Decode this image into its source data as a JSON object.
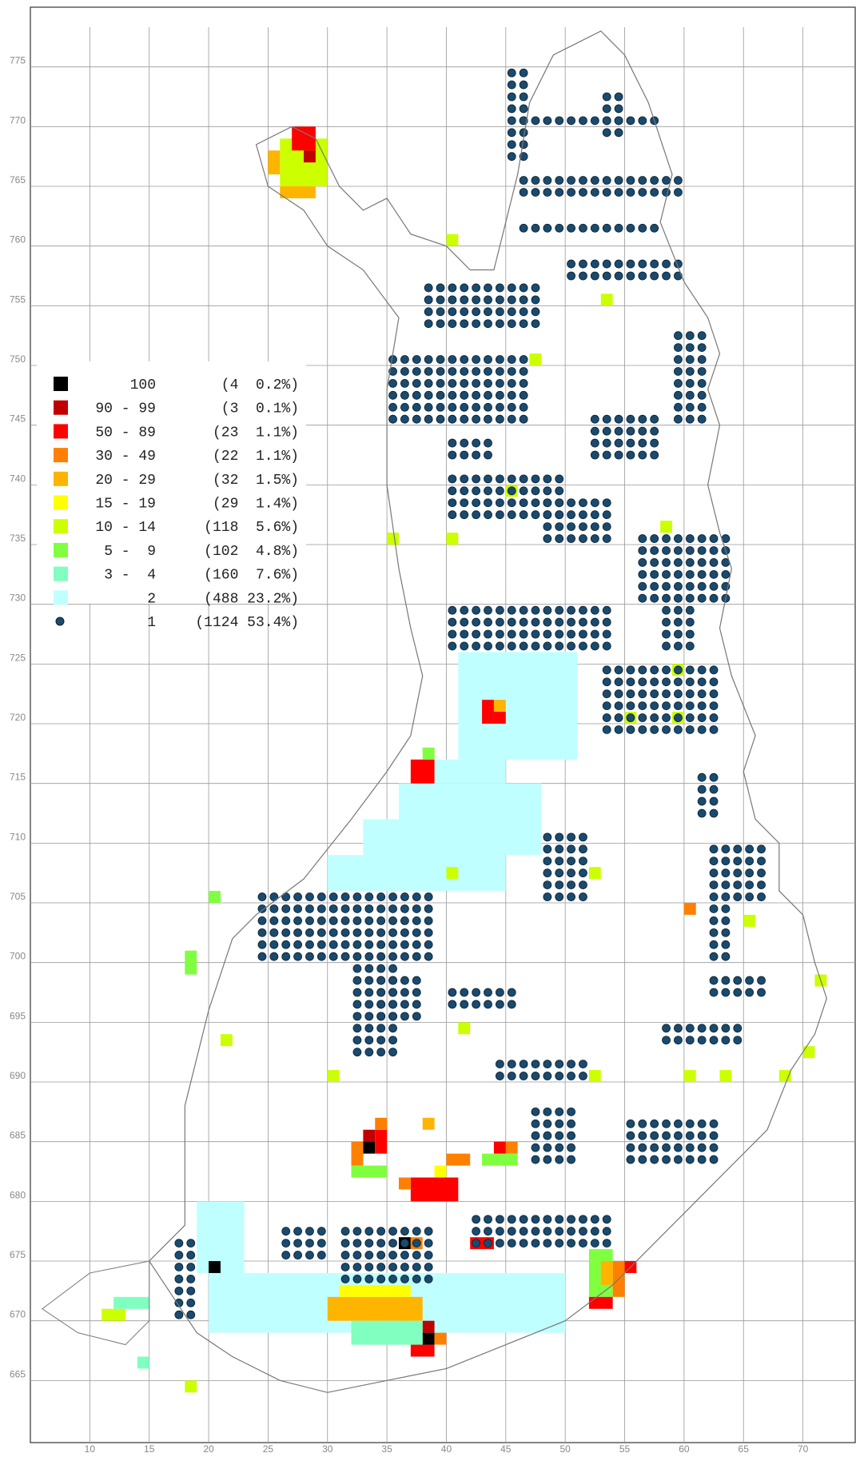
{
  "map": {
    "xlim": [
      5,
      74.4
    ],
    "ylim": [
      659.8,
      780
    ],
    "xticks": [
      10,
      15,
      20,
      25,
      30,
      35,
      40,
      45,
      50,
      55,
      60,
      65,
      70
    ],
    "yticks": [
      665,
      670,
      675,
      680,
      685,
      690,
      695,
      700,
      705,
      710,
      715,
      720,
      725,
      730,
      735,
      740,
      745,
      750,
      755,
      760,
      765,
      770,
      775
    ],
    "legend": [
      {
        "range": "100",
        "info": "(4  0.2%)",
        "color": "#000000"
      },
      {
        "range": "90 - 99",
        "info": "(3  0.1%)",
        "color": "#c00000"
      },
      {
        "range": "50 - 89",
        "info": "(23  1.1%)",
        "color": "#ff0000"
      },
      {
        "range": "30 - 49",
        "info": "(22  1.1%)",
        "color": "#ff8000"
      },
      {
        "range": "20 - 29",
        "info": "(32  1.5%)",
        "color": "#ffb400"
      },
      {
        "range": "15 - 19",
        "info": "(29  1.4%)",
        "color": "#ffff00"
      },
      {
        "range": "10 - 14",
        "info": "(118  5.6%)",
        "color": "#ccff00"
      },
      {
        "range": "5 -  9",
        "info": "(102  4.8%)",
        "color": "#80ff40"
      },
      {
        "range": "3 -  4",
        "info": "(160  7.6%)",
        "color": "#80ffc0"
      },
      {
        "range": "2",
        "info": "(488 23.2%)",
        "color": "#c0ffff"
      },
      {
        "range": "1",
        "info": "(1124 53.4%)",
        "color": "#1a4a6e"
      }
    ],
    "cells": [
      [
        30,
        706,
        15,
        3,
        9
      ],
      [
        33,
        709,
        15,
        3,
        9
      ],
      [
        36,
        712,
        12,
        3,
        9
      ],
      [
        39,
        715,
        6,
        2,
        9
      ],
      [
        41,
        717,
        10,
        9,
        9
      ],
      [
        20,
        669,
        30,
        5,
        9
      ],
      [
        19,
        674,
        4,
        6,
        9
      ],
      [
        43,
        722,
        5,
        3,
        9
      ],
      [
        26,
        765,
        4,
        4,
        6
      ],
      [
        27,
        768,
        2,
        2,
        2
      ],
      [
        28,
        767,
        1,
        1,
        1
      ],
      [
        26,
        764,
        3,
        1,
        4
      ],
      [
        25,
        766,
        1,
        2,
        4
      ],
      [
        37,
        715,
        2,
        2,
        2
      ],
      [
        38,
        717,
        1,
        1,
        7
      ],
      [
        43,
        720,
        1,
        2,
        2
      ],
      [
        44,
        721,
        1,
        1,
        4
      ],
      [
        44,
        720,
        1,
        1,
        2
      ],
      [
        32,
        682,
        3,
        1,
        7
      ],
      [
        37,
        680,
        4,
        2,
        2
      ],
      [
        36,
        681,
        1,
        1,
        3
      ],
      [
        33,
        684,
        1,
        1,
        0
      ],
      [
        33,
        685,
        1,
        1,
        1
      ],
      [
        34,
        684,
        1,
        2,
        2
      ],
      [
        34,
        686,
        1,
        1,
        3
      ],
      [
        32,
        683,
        1,
        2,
        3
      ],
      [
        36,
        676,
        1,
        1,
        0
      ],
      [
        37,
        676,
        1,
        1,
        3
      ],
      [
        36,
        668,
        1,
        2,
        3
      ],
      [
        37,
        667,
        2,
        1,
        2
      ],
      [
        38,
        668,
        1,
        1,
        0
      ],
      [
        38,
        669,
        1,
        1,
        1
      ],
      [
        39,
        668,
        1,
        1,
        3
      ],
      [
        20,
        674,
        1,
        1,
        0
      ],
      [
        42,
        676,
        2,
        1,
        2
      ],
      [
        52,
        672,
        2,
        4,
        7
      ],
      [
        52,
        671,
        2,
        1,
        2
      ],
      [
        54,
        672,
        1,
        3,
        3
      ],
      [
        55,
        674,
        1,
        1,
        2
      ],
      [
        53,
        673,
        1,
        2,
        4
      ],
      [
        43,
        683,
        3,
        1,
        7
      ],
      [
        44,
        684,
        1,
        1,
        2
      ],
      [
        45,
        684,
        1,
        1,
        3
      ],
      [
        30,
        670,
        8,
        2,
        4
      ],
      [
        31,
        672,
        6,
        1,
        5
      ],
      [
        32,
        668,
        6,
        2,
        8
      ],
      [
        38,
        686,
        1,
        1,
        4
      ],
      [
        39,
        682,
        1,
        1,
        5
      ],
      [
        40,
        683,
        2,
        1,
        3
      ],
      [
        58,
        736,
        1,
        1,
        6
      ],
      [
        59,
        720,
        1,
        1,
        6
      ],
      [
        59,
        724,
        1,
        1,
        6
      ],
      [
        60,
        704,
        1,
        1,
        3
      ],
      [
        71,
        698,
        1,
        1,
        6
      ],
      [
        65,
        703,
        1,
        1,
        6
      ],
      [
        55,
        720,
        1,
        1,
        6
      ],
      [
        45,
        739,
        1,
        1,
        6
      ],
      [
        40,
        735,
        1,
        1,
        6
      ],
      [
        35,
        735,
        1,
        1,
        6
      ],
      [
        40,
        760,
        1,
        1,
        6
      ],
      [
        47,
        750,
        1,
        1,
        6
      ],
      [
        53,
        755,
        1,
        1,
        6
      ],
      [
        52,
        707,
        1,
        1,
        6
      ],
      [
        40,
        707,
        1,
        1,
        6
      ],
      [
        20,
        705,
        1,
        1,
        7
      ],
      [
        18,
        699,
        1,
        2,
        7
      ],
      [
        21,
        693,
        1,
        1,
        6
      ],
      [
        30,
        690,
        1,
        1,
        6
      ],
      [
        41,
        694,
        1,
        1,
        6
      ],
      [
        52,
        690,
        1,
        1,
        6
      ],
      [
        60,
        690,
        1,
        1,
        6
      ],
      [
        63,
        690,
        1,
        1,
        6
      ],
      [
        68,
        690,
        1,
        1,
        6
      ],
      [
        70,
        692,
        1,
        1,
        6
      ],
      [
        18,
        664,
        1,
        1,
        6
      ],
      [
        14,
        666,
        1,
        1,
        8
      ],
      [
        11,
        670,
        2,
        1,
        6
      ],
      [
        12,
        671,
        3,
        1,
        8
      ],
      [
        46,
        770,
        12,
        1,
        10
      ],
      [
        46,
        764,
        14,
        2,
        10
      ],
      [
        46,
        761,
        12,
        1,
        10
      ],
      [
        50,
        757,
        10,
        2,
        10
      ],
      [
        38,
        753,
        10,
        4,
        10
      ],
      [
        35,
        745,
        12,
        6,
        10
      ],
      [
        40,
        737,
        10,
        4,
        10
      ],
      [
        40,
        742,
        4,
        2,
        10
      ],
      [
        52,
        742,
        6,
        4,
        10
      ],
      [
        48,
        735,
        6,
        4,
        10
      ],
      [
        56,
        730,
        8,
        6,
        10
      ],
      [
        40,
        726,
        14,
        4,
        10
      ],
      [
        53,
        719,
        10,
        6,
        10
      ],
      [
        45,
        767,
        2,
        8,
        10
      ],
      [
        53,
        769,
        2,
        4,
        10
      ],
      [
        24,
        700,
        15,
        6,
        10
      ],
      [
        32,
        692,
        4,
        8,
        10
      ],
      [
        34,
        695,
        4,
        4,
        10
      ],
      [
        44,
        690,
        8,
        2,
        10
      ],
      [
        40,
        696,
        6,
        2,
        10
      ],
      [
        55,
        683,
        8,
        4,
        10
      ],
      [
        58,
        693,
        7,
        2,
        10
      ],
      [
        62,
        697,
        5,
        2,
        10
      ],
      [
        42,
        676,
        12,
        3,
        10
      ],
      [
        31,
        673,
        8,
        5,
        10
      ],
      [
        26,
        675,
        4,
        3,
        10
      ],
      [
        17,
        670,
        2,
        7,
        10
      ],
      [
        47,
        683,
        4,
        5,
        10
      ],
      [
        59,
        745,
        3,
        8,
        10
      ],
      [
        62,
        700,
        2,
        10,
        10
      ],
      [
        64,
        705,
        3,
        5,
        10
      ],
      [
        48,
        705,
        4,
        6,
        10
      ],
      [
        61,
        712,
        2,
        4,
        10
      ],
      [
        58,
        726,
        3,
        4,
        10
      ]
    ]
  }
}
